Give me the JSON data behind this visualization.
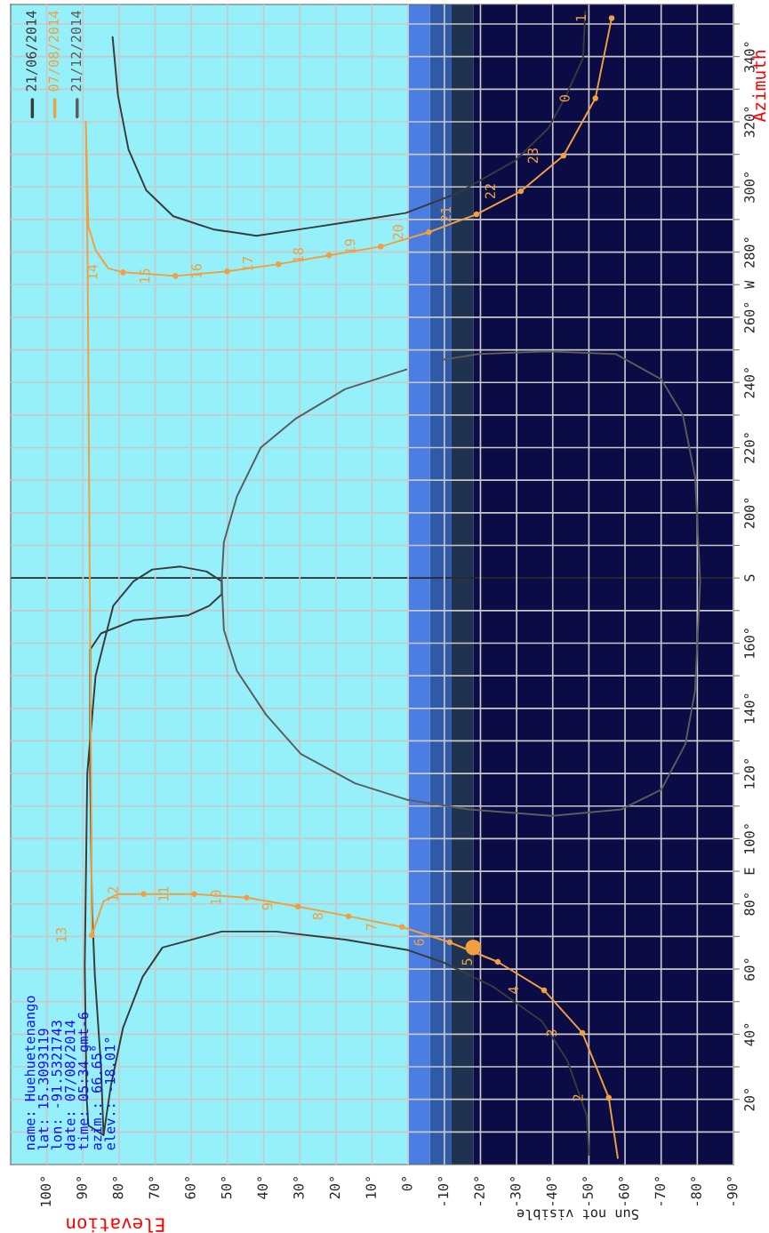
{
  "chart_data": {
    "type": "line",
    "xlabel": "Elevation",
    "ylabel": "Azimuth",
    "xlim": [
      110,
      -90
    ],
    "ylim": [
      0,
      356
    ],
    "xticks": [
      {
        "value": 100,
        "label": "100°"
      },
      {
        "value": 90,
        "label": "90°"
      },
      {
        "value": 80,
        "label": "80°"
      },
      {
        "value": 70,
        "label": "70°"
      },
      {
        "value": 60,
        "label": "60°"
      },
      {
        "value": 50,
        "label": "50°"
      },
      {
        "value": 40,
        "label": "40°"
      },
      {
        "value": 30,
        "label": "30°"
      },
      {
        "value": 20,
        "label": "20°"
      },
      {
        "value": 10,
        "label": "10°"
      },
      {
        "value": 0,
        "label": "0°"
      },
      {
        "value": -10,
        "label": "-10°"
      },
      {
        "value": -20,
        "label": "-20°"
      },
      {
        "value": -30,
        "label": "-30°"
      },
      {
        "value": -40,
        "label": "-40°"
      },
      {
        "value": -50,
        "label": "-50°"
      },
      {
        "value": -60,
        "label": "-60°"
      },
      {
        "value": -70,
        "label": "-70°"
      },
      {
        "value": -80,
        "label": "-80°"
      },
      {
        "value": -90,
        "label": "-90°"
      }
    ],
    "yticks": [
      {
        "value": 10,
        "label": null
      },
      {
        "value": 20,
        "label": "20°"
      },
      {
        "value": 30,
        "label": null
      },
      {
        "value": 40,
        "label": "40°"
      },
      {
        "value": 50,
        "label": null
      },
      {
        "value": 60,
        "label": "60°"
      },
      {
        "value": 70,
        "label": null
      },
      {
        "value": 80,
        "label": "80°"
      },
      {
        "value": 90,
        "label": "E"
      },
      {
        "value": 100,
        "label": "100°"
      },
      {
        "value": 110,
        "label": null
      },
      {
        "value": 120,
        "label": "120°"
      },
      {
        "value": 130,
        "label": null
      },
      {
        "value": 140,
        "label": "140°"
      },
      {
        "value": 150,
        "label": null
      },
      {
        "value": 160,
        "label": "160°"
      },
      {
        "value": 170,
        "label": null
      },
      {
        "value": 180,
        "label": "S"
      },
      {
        "value": 190,
        "label": null
      },
      {
        "value": 200,
        "label": "200°"
      },
      {
        "value": 210,
        "label": null
      },
      {
        "value": 220,
        "label": "220°"
      },
      {
        "value": 230,
        "label": null
      },
      {
        "value": 240,
        "label": "240°"
      },
      {
        "value": 250,
        "label": null
      },
      {
        "value": 260,
        "label": "260°"
      },
      {
        "value": 270,
        "label": "W"
      },
      {
        "value": 280,
        "label": "280°"
      },
      {
        "value": 290,
        "label": null
      },
      {
        "value": 300,
        "label": "300°"
      },
      {
        "value": 310,
        "label": null
      },
      {
        "value": 320,
        "label": "320°"
      },
      {
        "value": 330,
        "label": null
      },
      {
        "value": 340,
        "label": "340°"
      },
      {
        "value": 350,
        "label": null
      }
    ],
    "grid": true,
    "line_style": "solid",
    "bands": [
      {
        "axis": "x",
        "from": 110,
        "to": 0,
        "color": "#96f0fa"
      },
      {
        "axis": "x",
        "from": 0,
        "to": -6,
        "color": "#4a7ee2"
      },
      {
        "axis": "x",
        "from": -6,
        "to": -12,
        "color": "#2f5aa8"
      },
      {
        "axis": "x",
        "from": -12,
        "to": -18,
        "color": "#1f3350"
      },
      {
        "axis": "x",
        "from": -18,
        "to": -90,
        "color": "#0b0b45"
      }
    ],
    "ref_lines": [
      {
        "axis": "y",
        "value": 180,
        "color": "#2a2a2a"
      }
    ],
    "series": [
      {
        "name": "21/06/2014",
        "color": "#3a3a3a",
        "x": [
          -50,
          -49.4,
          -44,
          -37,
          -23.5,
          -9.8,
          0,
          17.4,
          36.6,
          51.6,
          68,
          73.5,
          78.9,
          82.3,
          84.3,
          85,
          86.7,
          87.5,
          88,
          88,
          85,
          76,
          61,
          55,
          51.6,
          51.6,
          55.8,
          63,
          70.8,
          76,
          81.6,
          84,
          86.5,
          88.8,
          89.5,
          89,
          88.5,
          84.3,
          null,
          81.8,
          80.3,
          77.4,
          72.5,
          65,
          54,
          42,
          27,
          12.3,
          0.7,
          -13.5,
          -29.5,
          -38.8,
          -43.7,
          -48.4,
          -49
        ],
        "values": [
          3,
          15,
          32,
          44,
          54.6,
          62,
          65.8,
          69,
          71.5,
          71.5,
          66.6,
          57.6,
          42,
          24,
          9,
          30,
          58,
          79,
          120,
          158,
          163,
          167,
          168.5,
          171.5,
          175,
          179,
          182,
          183.5,
          182.6,
          179,
          171.5,
          161,
          150,
          120,
          61,
          21,
          12,
          9,
          null,
          346,
          328,
          311.5,
          299,
          291,
          287,
          285,
          287.5,
          290,
          292,
          298,
          308,
          318,
          328,
          339.6,
          354
        ]
      },
      {
        "name": "07/08/2014",
        "color": "#f0a040",
        "x": [
          -58,
          -55.5,
          -48.2,
          -37.6,
          -24.8,
          -11.5,
          1.7,
          16.5,
          30.5,
          44.7,
          59.2,
          73.2,
          80.3,
          84.3,
          87.5,
          87.7,
          88.2,
          88.7,
          89.2,
          88.5,
          86.5,
          83,
          78.9,
          64.4,
          50.1,
          35.9,
          21.9,
          7.6,
          -5.7,
          -18.9,
          -31.2,
          -43,
          -51.8,
          -56.3
        ],
        "values": [
          2,
          20.5,
          40.4,
          53.5,
          62.2,
          68.2,
          72.9,
          76.2,
          79.2,
          81.9,
          83,
          83,
          83,
          80.8,
          70.4,
          112,
          194,
          276,
          320,
          288,
          280.6,
          275,
          273.8,
          272.7,
          274.1,
          276.3,
          279,
          281.7,
          286.1,
          291.6,
          298.7,
          309.6,
          327.2,
          351.8
        ]
      },
      {
        "name": "21/12/2014",
        "color": "#5c5c5c",
        "x": [
          0.5,
          17.4,
          31,
          40.8,
          47.4,
          51,
          51.6,
          51,
          47.4,
          39.3,
          29.7,
          14.7,
          0.5,
          -16.7,
          -39.8,
          -59,
          -70,
          -76.7,
          -79.4,
          -80.8,
          -79.4,
          -76,
          -70,
          -57.5,
          -38.6,
          -19.4,
          -9.8
        ],
        "values": [
          244,
          238,
          229,
          220,
          205,
          191,
          179,
          164,
          151.5,
          138,
          126,
          117,
          112,
          109,
          107,
          109,
          115,
          129,
          145.5,
          179,
          211,
          230,
          241,
          248.7,
          249.5,
          248.7,
          247
        ]
      },
      {
        "type": "scatter",
        "marker": "circle",
        "color": "#f0a040",
        "x": [
          -55.5,
          -48.2,
          -37.6,
          -24.8,
          -11.5,
          1.7,
          16.5,
          30.5,
          44.7,
          59.2,
          73.2,
          87.5,
          78.9,
          64.4,
          50.1,
          35.9,
          21.9,
          7.6,
          -5.7,
          -18.9,
          -31.2,
          -43,
          -51.8,
          -56.3
        ],
        "values": [
          20.5,
          40.4,
          53.5,
          62.2,
          68.2,
          72.9,
          76.2,
          79.2,
          81.9,
          83,
          83,
          70.4,
          273.8,
          272.7,
          274.1,
          276.3,
          279,
          281.7,
          286.1,
          291.6,
          298.7,
          309.6,
          327.2,
          351.8
        ]
      },
      {
        "type": "bubble",
        "color": "#f0a040",
        "x": [
          -18.01
        ],
        "values": [
          66.65
        ],
        "sizes": [
          1
        ]
      }
    ],
    "annotations": [
      "name: Huehuetenango",
      "lat: 15.3093119",
      "lon: -91.5321743",
      "date: 07/08/2014",
      "time: 05:34 gmt-6",
      "azim.: 66.65°",
      "elev.: -18.01°",
      "Sun not visible",
      {
        "text": "2",
        "x": -55.5,
        "y": 20.5
      },
      {
        "text": "3",
        "x": -48.2,
        "y": 40.4
      },
      {
        "text": "4",
        "x": -37.6,
        "y": 53.5
      },
      {
        "text": "5",
        "x": -24.8,
        "y": 62.2
      },
      {
        "text": "6",
        "x": -11.5,
        "y": 68.2
      },
      {
        "text": "7",
        "x": 1.7,
        "y": 72.9
      },
      {
        "text": "8",
        "x": 16.5,
        "y": 76.2
      },
      {
        "text": "9",
        "x": 30.5,
        "y": 79.2
      },
      {
        "text": "10",
        "x": 44.7,
        "y": 81.9
      },
      {
        "text": "11",
        "x": 59.2,
        "y": 83
      },
      {
        "text": "12",
        "x": 73.2,
        "y": 83
      },
      {
        "text": "13",
        "x": 87.5,
        "y": 70.4
      },
      {
        "text": "14",
        "x": 78.9,
        "y": 273.8
      },
      {
        "text": "15",
        "x": 64.4,
        "y": 272.7
      },
      {
        "text": "16",
        "x": 50.1,
        "y": 274.1
      },
      {
        "text": "17",
        "x": 35.9,
        "y": 276.3
      },
      {
        "text": "18",
        "x": 21.9,
        "y": 279
      },
      {
        "text": "19",
        "x": 7.6,
        "y": 281.7
      },
      {
        "text": "20",
        "x": -5.7,
        "y": 286.1
      },
      {
        "text": "21",
        "x": -18.9,
        "y": 291.6
      },
      {
        "text": "22",
        "x": -31.2,
        "y": 298.7
      },
      {
        "text": "23",
        "x": -43,
        "y": 309.6
      },
      {
        "text": "0",
        "x": -51.8,
        "y": 327.2
      },
      {
        "text": "1",
        "x": -56.3,
        "y": 351.8
      }
    ]
  }
}
